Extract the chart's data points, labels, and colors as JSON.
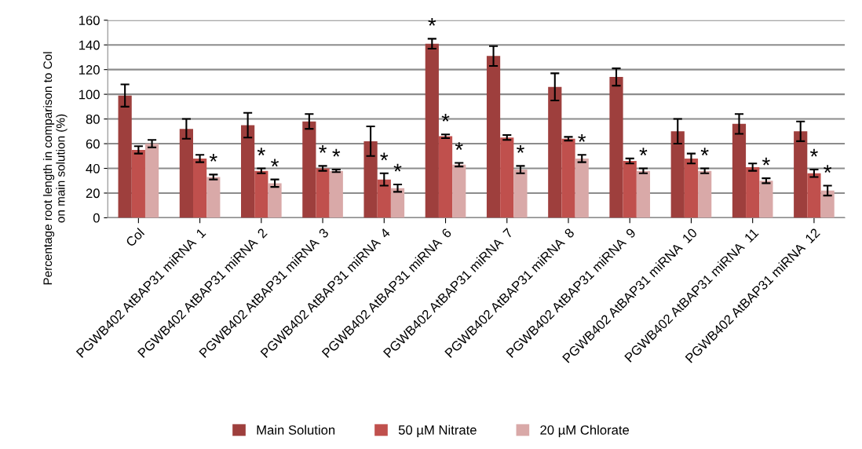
{
  "chart_data": {
    "type": "bar",
    "ylabel": "Percentage root length in comparison to Col\non main solution (%)",
    "categories": [
      "Col",
      "PGWB402 AtBAP31 miRNA  1",
      "PGWB402 AtBAP31 miRNA  2",
      "PGWB402 AtBAP31 miRNA  3",
      "PGWB402 AtBAP31 miRNA  4",
      "PGWB402 AtBAP31 miRNA  6",
      "PGWB402 AtBAP31 miRNA  7",
      "PGWB402 AtBAP31 miRNA  8",
      "PGWB402 AtBAP31 miRNA  9",
      "PGWB402 AtBAP31 miRNA  10",
      "PGWB402 AtBAP31 miRNA  11",
      "PGWB402 AtBAP31 miRNA  12"
    ],
    "series": [
      {
        "name": "Main Solution",
        "color": "#9e3f3d",
        "values": [
          99,
          72,
          75,
          78,
          62,
          141,
          131,
          106,
          114,
          70,
          76,
          70
        ],
        "errors": [
          9,
          8,
          10,
          6,
          12,
          4,
          8,
          11,
          7,
          10,
          8,
          8
        ],
        "value_labels": [
          null,
          null,
          null,
          null,
          null,
          "*",
          null,
          null,
          null,
          null,
          null,
          null
        ]
      },
      {
        "name": "50 µM Nitrate",
        "color": "#c0504d",
        "values": [
          55,
          48,
          38,
          40,
          31,
          66,
          65,
          64,
          46,
          48,
          41,
          36
        ],
        "errors": [
          3,
          3,
          2,
          2,
          5,
          1.5,
          2,
          1.5,
          2,
          4,
          3,
          3
        ],
        "value_labels": [
          null,
          null,
          "*",
          "*",
          "*",
          "*",
          null,
          null,
          null,
          null,
          null,
          "*"
        ]
      },
      {
        "name": "20 µM Chlorate",
        "color": "#d9a9a8",
        "values": [
          60,
          33,
          28,
          38,
          24,
          43,
          39,
          48,
          38,
          38,
          30,
          22
        ],
        "errors": [
          3,
          2,
          3,
          1,
          3,
          1.5,
          3,
          3,
          2,
          2,
          2,
          4
        ],
        "value_labels": [
          null,
          "*",
          "*",
          "*",
          "*",
          "*",
          "*",
          "*",
          "*",
          "*",
          "*",
          "*"
        ]
      }
    ],
    "ylim": [
      0,
      160
    ],
    "yticks": [
      0,
      20,
      40,
      60,
      80,
      100,
      120,
      140,
      160
    ],
    "grid": "y",
    "legend": "bottom"
  }
}
